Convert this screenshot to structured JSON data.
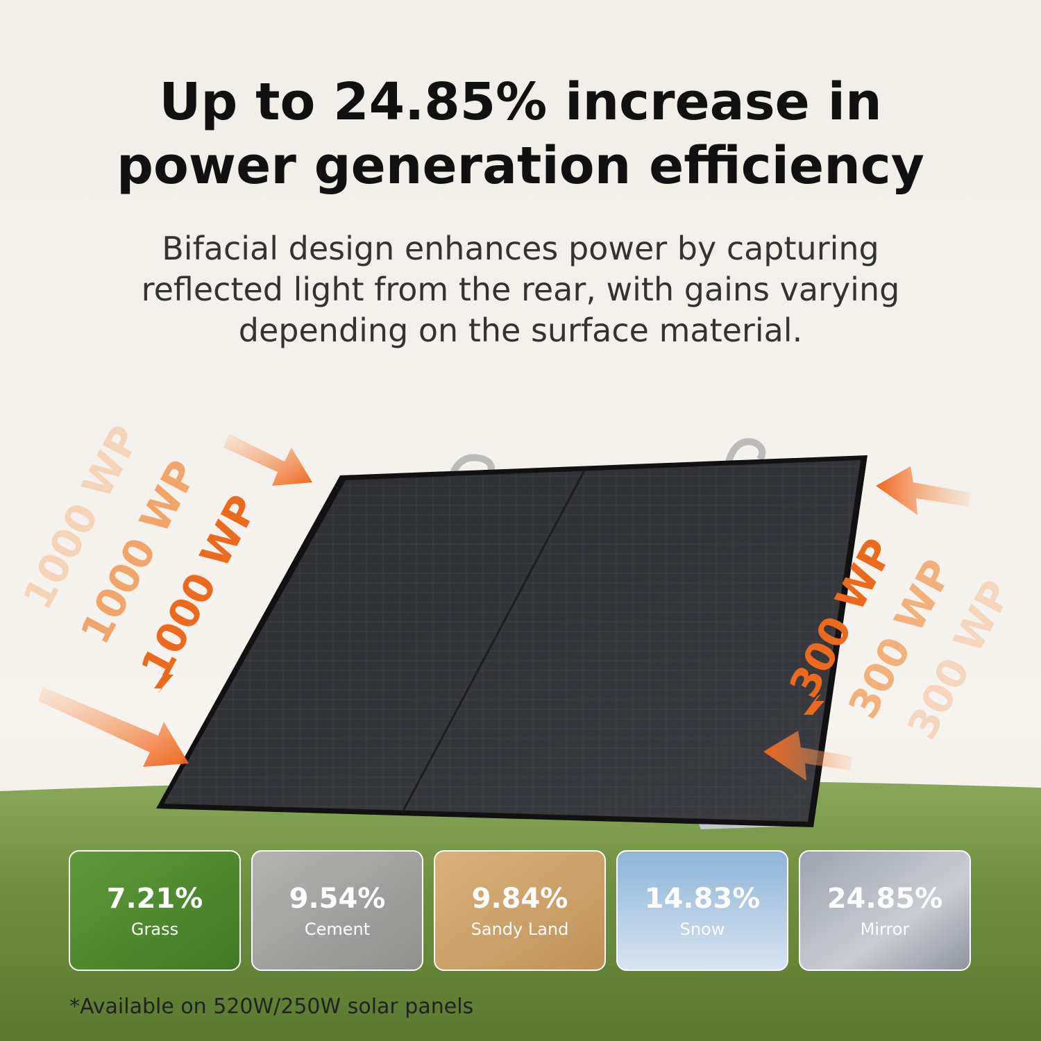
{
  "headline": [
    "Up to 24.85% increase in",
    "power generation efficiency"
  ],
  "description": [
    "Bifacial design enhances power by capturing",
    "reflected light from the rear, with gains varying",
    "depending on the surface material."
  ],
  "front_labels": [
    "1000 WP",
    "1000 WP",
    "1000 WP"
  ],
  "rear_labels": [
    "300 WP",
    "300 WP",
    "300 WP"
  ],
  "cards": [
    {
      "value": "7.21%",
      "surface": "Grass"
    },
    {
      "value": "9.54%",
      "surface": "Cement"
    },
    {
      "value": "9.84%",
      "surface": "Sandy Land"
    },
    {
      "value": "14.83%",
      "surface": "Snow"
    },
    {
      "value": "24.85%",
      "surface": "Mirror"
    }
  ],
  "footnote": "*Available on 520W/250W solar panels"
}
